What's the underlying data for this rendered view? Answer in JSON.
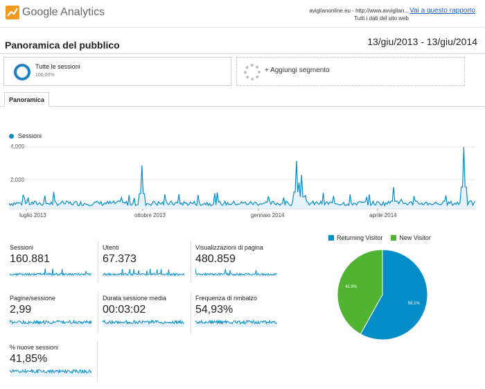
{
  "header": {
    "logo_word1": "Google",
    "logo_word2": "Analytics",
    "account_line1": "aviglianonline.eu - http://www.avviglian...",
    "account_line2": "Tutti i dati del sito web",
    "report_link": "Vai a questo rapporto"
  },
  "page": {
    "title": "Panoramica del pubblico",
    "date_range": "13/giu/2013 - 13/giu/2014"
  },
  "segments": {
    "active_name": "Tutte le sessioni",
    "active_pct": "100,00%",
    "add_label": "+ Aggiungi segmento"
  },
  "tabs": {
    "overview": "Panoramica"
  },
  "chart_data": [
    {
      "type": "line",
      "legend": [
        "Sessioni"
      ],
      "ylim": [
        0,
        4000
      ],
      "y_ticks": [
        "4.000",
        "2.000"
      ],
      "x_tick_labels": [
        "luglio 2013",
        "ottobre 2013",
        "gennaio 2014",
        "aprile 2014"
      ],
      "series": [
        {
          "name": "Sessioni",
          "color": "#058dc7",
          "points_x_dates_approx": [
            "2013-06-13",
            "2013-09-23",
            "2013-09-25",
            "2013-10-05",
            "2014-01-24",
            "2014-01-26",
            "2014-01-28",
            "2014-04-10",
            "2014-06-04",
            "2014-06-13"
          ],
          "points_values_approx": [
            300,
            400,
            2800,
            450,
            3100,
            1700,
            2200,
            1400,
            4000,
            300
          ],
          "baseline_approx": 350
        }
      ]
    },
    {
      "type": "pie",
      "legend": [
        "Returning Visitor",
        "New Visitor"
      ],
      "slices": [
        {
          "name": "Returning Visitor",
          "value": 58.1,
          "label": "58.1%",
          "color": "#058dc7"
        },
        {
          "name": "New Visitor",
          "value": 41.9,
          "label": "41.9%",
          "color": "#50b432"
        }
      ]
    }
  ],
  "metrics": [
    {
      "label": "Sessioni",
      "value": "160.881"
    },
    {
      "label": "Utenti",
      "value": "67.373"
    },
    {
      "label": "Visualizzazioni di pagina",
      "value": "480.859"
    },
    {
      "label": "Pagine/sessione",
      "value": "2,99"
    },
    {
      "label": "Durata sessione media",
      "value": "00:03:02"
    },
    {
      "label": "Frequenza di rimbalzo",
      "value": "54,93%"
    },
    {
      "label": "% nuove sessioni",
      "value": "41,85%"
    }
  ],
  "colors": {
    "accent": "#058dc7",
    "green": "#50b432",
    "link": "#1a5bb8"
  }
}
